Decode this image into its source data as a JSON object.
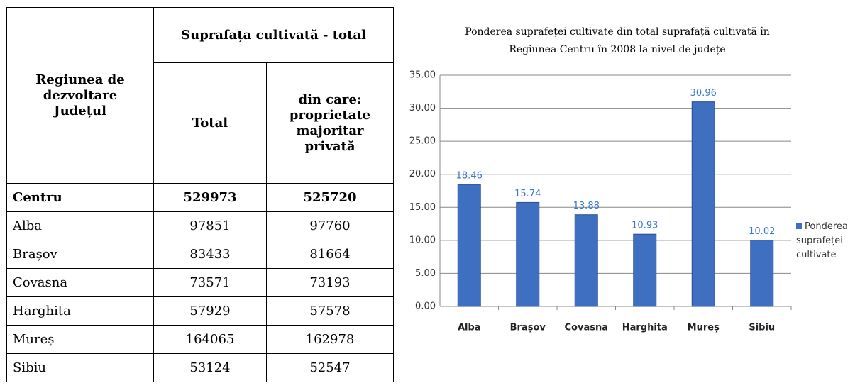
{
  "table": {
    "header": {
      "region": [
        "Regiunea de",
        "dezvoltare",
        "Județul"
      ],
      "group": "Suprafața cultivată - total",
      "total": "Total",
      "private": [
        "din care:",
        "proprietate",
        "majoritar",
        "privată"
      ]
    },
    "rows": [
      [
        "Centru",
        "529973",
        "525720"
      ],
      [
        "Alba",
        "97851",
        "97760"
      ],
      [
        "Brașov",
        "83433",
        "81664"
      ],
      [
        "Covasna",
        "73571",
        "73193"
      ],
      [
        "Harghita",
        "57929",
        "57578"
      ],
      [
        "Mureș",
        "164065",
        "162978"
      ],
      [
        "Sibiu",
        "53124",
        "52547"
      ]
    ]
  },
  "chart_data": {
    "type": "bar",
    "title": [
      "Ponderea suprafeței cultivate din total suprafață cultivată în",
      "Regiunea Centru în 2008 la nivel de județe"
    ],
    "categories": [
      "Alba",
      "Brașov",
      "Covasna",
      "Harghita",
      "Mureș",
      "Sibiu"
    ],
    "series": [
      {
        "name": "Ponderea suprafeței cultivate",
        "color": "#3f6fc0",
        "values": [
          18.46,
          15.74,
          13.88,
          10.93,
          30.96,
          10.02
        ]
      }
    ],
    "ylim": [
      0,
      35
    ],
    "yticks": [
      {
        "value": 0,
        "label": "0.00"
      },
      {
        "value": 5,
        "label": "5.00"
      },
      {
        "value": 10,
        "label": "10.00"
      },
      {
        "value": 15,
        "label": "15.00"
      },
      {
        "value": 20,
        "label": "20.00"
      },
      {
        "value": 25,
        "label": "25.00"
      },
      {
        "value": 30,
        "label": "30.00"
      },
      {
        "value": 35,
        "label": "35.00"
      }
    ],
    "grid": true,
    "legend": "right"
  }
}
